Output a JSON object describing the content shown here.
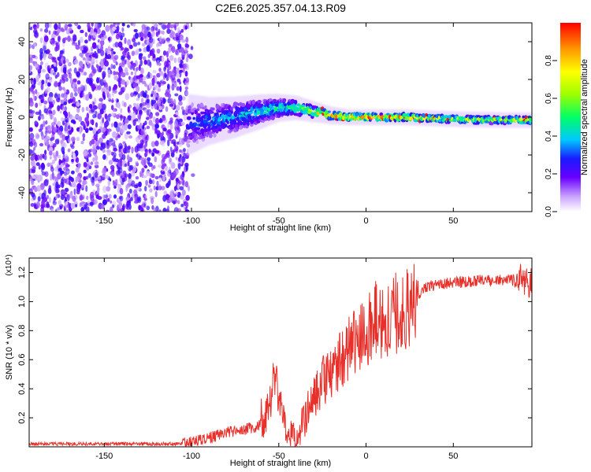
{
  "title": "C2E6.2025.357.04.13.R09",
  "chart_data": [
    {
      "type": "heatmap",
      "xlabel": "Height of straight line (km)",
      "ylabel": "Frequency (Hz)",
      "xlim": [
        -193,
        95
      ],
      "ylim": [
        -50,
        50
      ],
      "xticks": [
        -150,
        -100,
        -50,
        0,
        50
      ],
      "yticks": [
        -40,
        -20,
        0,
        20,
        40
      ],
      "colorbar": {
        "label": "Normalized spectral amplitude",
        "range": [
          0,
          1
        ],
        "ticks": [
          0.0,
          0.2,
          0.4,
          0.6,
          0.8
        ]
      },
      "noise_region": {
        "x_range": [
          -193,
          -102
        ],
        "freq_range": [
          -50,
          50
        ],
        "amplitude": [
          0.05,
          0.25
        ]
      },
      "ridge": [
        {
          "x": -102,
          "freq": -4,
          "spread": 8,
          "amplitude": 0.28
        },
        {
          "x": -90,
          "freq": -2,
          "spread": 6,
          "amplitude": 0.35
        },
        {
          "x": -75,
          "freq": 0,
          "spread": 5,
          "amplitude": 0.4
        },
        {
          "x": -60,
          "freq": 3,
          "spread": 4,
          "amplitude": 0.45
        },
        {
          "x": -50,
          "freq": 5,
          "spread": 3,
          "amplitude": 0.5
        },
        {
          "x": -40,
          "freq": 5,
          "spread": 2.5,
          "amplitude": 0.55
        },
        {
          "x": -30,
          "freq": 3,
          "spread": 2,
          "amplitude": 0.7
        },
        {
          "x": -20,
          "freq": 1,
          "spread": 1.5,
          "amplitude": 0.85
        },
        {
          "x": -10,
          "freq": 0,
          "spread": 1.2,
          "amplitude": 0.9
        },
        {
          "x": 0,
          "freq": 0,
          "spread": 1.2,
          "amplitude": 0.95
        },
        {
          "x": 20,
          "freq": 0,
          "spread": 1.2,
          "amplitude": 0.9
        },
        {
          "x": 50,
          "freq": -1,
          "spread": 1.2,
          "amplitude": 0.7
        },
        {
          "x": 80,
          "freq": -1.5,
          "spread": 1.2,
          "amplitude": 0.7
        },
        {
          "x": 95,
          "freq": -1.5,
          "spread": 1.2,
          "amplitude": 0.75
        }
      ]
    },
    {
      "type": "line",
      "xlabel": "Height of straight line (km)",
      "ylabel": "SNR (10 * v/v)",
      "scale_label": "(x10⁴)",
      "xlim": [
        -193,
        95
      ],
      "ylim": [
        0,
        1.3
      ],
      "xticks": [
        -150,
        -100,
        -50,
        0,
        50
      ],
      "yticks": [
        0.2,
        0.4,
        0.6,
        0.8,
        1.0,
        1.2
      ],
      "series": [
        {
          "name": "SNR",
          "color": "#e8302a",
          "x": [
            -193,
            -150,
            -110,
            -100,
            -90,
            -80,
            -70,
            -60,
            -55,
            -52,
            -50,
            -45,
            -40,
            -35,
            -30,
            -25,
            -20,
            -15,
            -10,
            -5,
            0,
            5,
            10,
            15,
            20,
            25,
            30,
            35,
            40,
            50,
            60,
            70,
            80,
            90,
            95
          ],
          "y": [
            0.02,
            0.02,
            0.02,
            0.03,
            0.06,
            0.1,
            0.12,
            0.15,
            0.3,
            0.5,
            0.3,
            0.12,
            0.05,
            0.2,
            0.35,
            0.45,
            0.5,
            0.6,
            0.7,
            0.75,
            0.82,
            0.86,
            0.9,
            0.92,
            0.9,
            1.0,
            1.05,
            1.1,
            1.12,
            1.13,
            1.14,
            1.15,
            1.15,
            1.14,
            1.13
          ]
        }
      ]
    }
  ]
}
